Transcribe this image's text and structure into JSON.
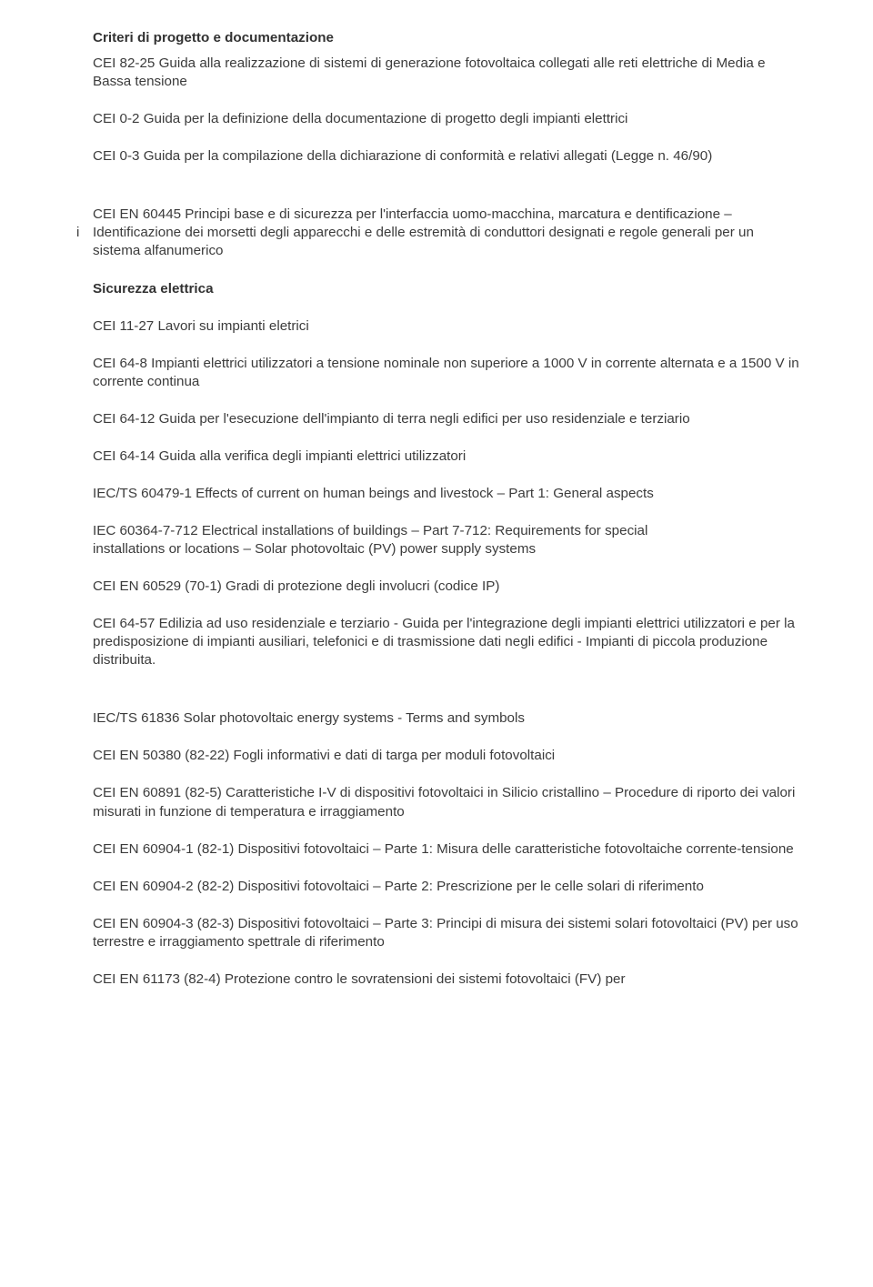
{
  "h1": "Criteri di progetto e documentazione",
  "p1": "CEI 82-25 Guida alla realizzazione di sistemi di generazione fotovoltaica collegati alle reti elettriche di Media e Bassa tensione",
  "p2": "CEI 0-2 Guida per la definizione della documentazione di progetto degli impianti elettrici",
  "p3": "CEI 0-3 Guida per la compilazione della dichiarazione di conformità e relativi allegati (Legge n. 46/90)",
  "hang_i": "i",
  "p4": "CEI EN 60445 Principi base e di sicurezza per l'interfaccia uomo-macchina, marcatura e dentificazione – Identificazione dei morsetti degli apparecchi e delle estremità di conduttori designati e  regole generali per un sistema alfanumerico",
  "h2": "Sicurezza elettrica",
  "p5": "CEI 11-27 Lavori su impianti eletrici",
  "p6": "CEI 64-8 Impianti elettrici utilizzatori a tensione nominale non superiore a 1000 V in corrente alternata e a 1500 V in corrente continua",
  "p7": "CEI 64-12 Guida per l'esecuzione dell'impianto di terra  negli edifici per uso residenziale e terziario",
  "p8": "CEI 64-14 Guida alla verifica degli impianti elettrici utilizzatori",
  "p9": "IEC/TS 60479-1 Effects of current on human beings and livestock – Part 1: General aspects",
  "p10a": "IEC 60364-7-712 Electrical installations of buildings – Part 7-712: Requirements for special",
  "p10b": "installations or locations – Solar photovoltaic (PV) power supply systems",
  "p11": "CEI EN 60529 (70-1) Gradi di protezione degli involucri (codice IP)",
  "p12": "CEI 64-57 Edilizia ad uso residenziale e terziario - Guida per l'integrazione degli impianti elettrici utilizzatori e per la predisposizione di impianti ausiliari, telefonici e di trasmissione dati negli edifici - Impianti di piccola produzione distribuita.",
  "p13": "IEC/TS 61836 Solar photovoltaic energy systems - Terms and symbols",
  "p14": "CEI EN 50380 (82-22) Fogli informativi e dati di targa per moduli fotovoltaici",
  "p15": "CEI EN 60891 (82-5) Caratteristiche I-V di dispositivi fotovoltaici in Silicio cristallino – Procedure di riporto dei valori misurati in funzione di  temperatura e irraggiamento",
  "p16": "CEI EN 60904-1 (82-1) Dispositivi fotovoltaici – Parte 1: Misura delle caratteristiche fotovoltaiche corrente-tensione",
  "p17": "CEI EN 60904-2 (82-2) Dispositivi fotovoltaici – Parte 2: Prescrizione per le celle solari di riferimento",
  "p18": "CEI EN 60904-3 (82-3) Dispositivi fotovoltaici – Parte 3: Principi di misura dei sistemi solari fotovoltaici (PV) per uso terrestre e irraggiamento spettrale di riferimento",
  "p19": "CEI EN 61173 (82-4) Protezione contro le sovratensioni dei sistemi fotovoltaici (FV) per"
}
